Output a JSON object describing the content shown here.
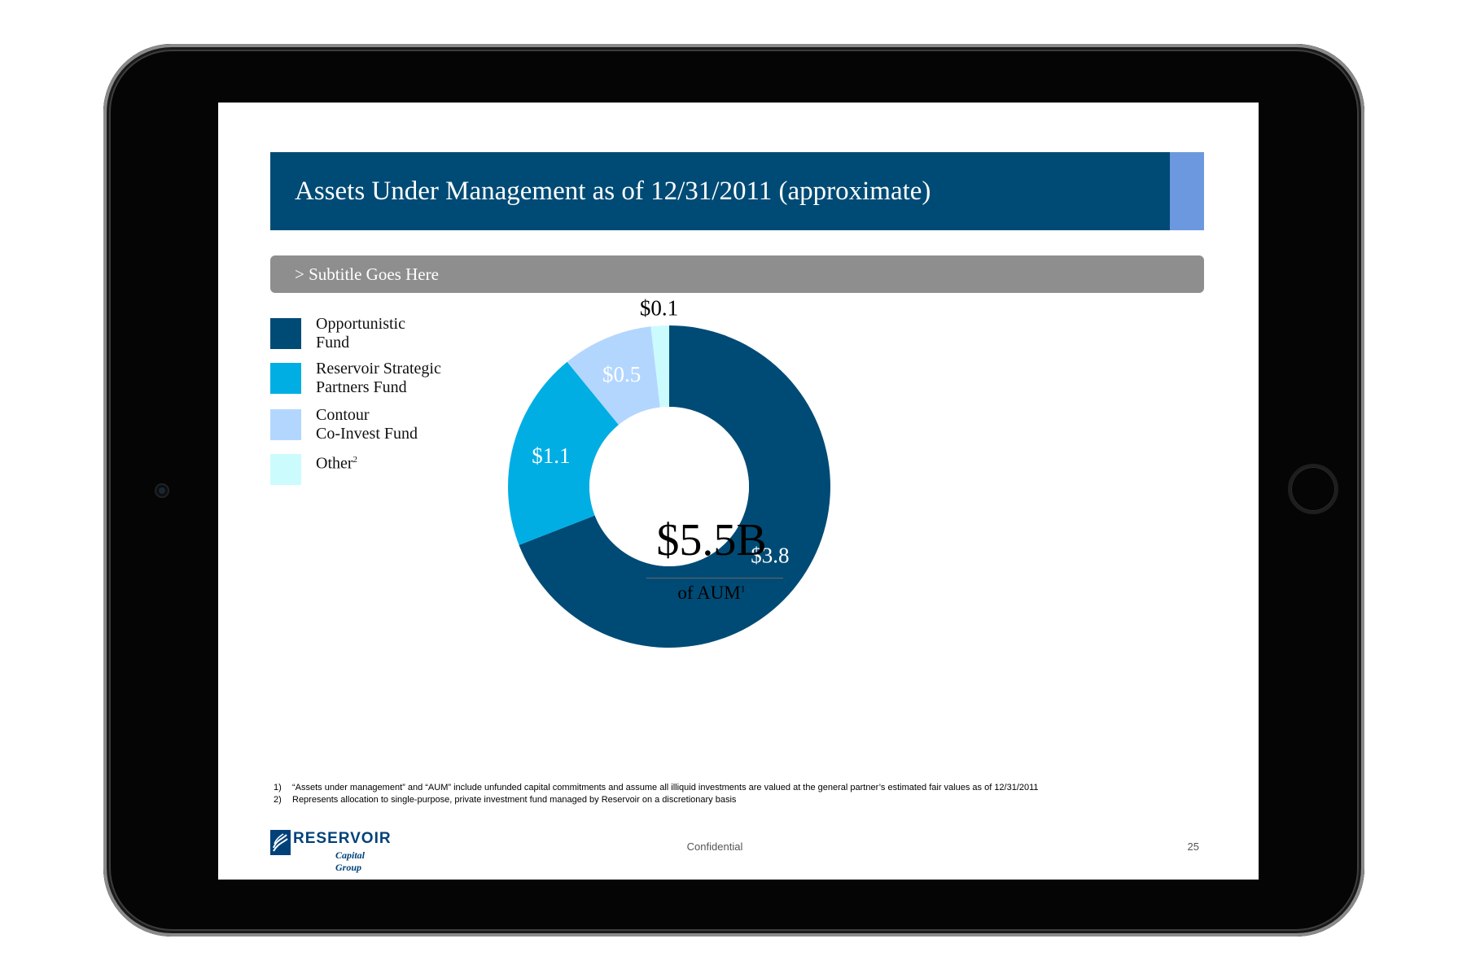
{
  "slide": {
    "title": "Assets Under Management as of 12/31/2011 (approximate)",
    "subtitle": "> Subtitle Goes Here",
    "confidential": "Confidential",
    "page_number": "25",
    "logo": {
      "name": "Reservoir",
      "sub": "Capital Group"
    },
    "colors": {
      "title_bar": "#004b75",
      "title_accent": "#6c98e0",
      "subtitle_bar": "#8e8e8e"
    }
  },
  "legend": [
    {
      "label": "Opportunistic\nFund",
      "color": "#004b75"
    },
    {
      "label": "Reservoir Strategic\nPartners Fund",
      "color": "#00aee3"
    },
    {
      "label": "Contour\nCo-Invest Fund",
      "color": "#b3d6ff"
    },
    {
      "label": "Other",
      "sup": "2",
      "color": "#ccfbfd"
    }
  ],
  "center": {
    "value": "$5.5B",
    "caption": "of AUM",
    "sup": "1"
  },
  "footnotes": [
    {
      "num": "1)",
      "text": "“Assets under management” and “AUM” include unfunded capital commitments and assume all illiquid investments are valued at the general partner’s estimated fair values as of 12/31/2011"
    },
    {
      "num": "2)",
      "text": "Represents allocation to single-purpose, private investment fund managed by Reservoir on a discretionary basis"
    }
  ],
  "chart_data": {
    "type": "pie",
    "donut": true,
    "title": "Assets Under Management as of 12/31/2011 (approximate)",
    "slices": [
      {
        "name": "Opportunistic Fund",
        "value": 3.8,
        "label": "$3.8",
        "color": "#004b75",
        "label_color": "#ffffff"
      },
      {
        "name": "Reservoir Strategic Partners Fund",
        "value": 1.1,
        "label": "$1.1",
        "color": "#00aee3",
        "label_color": "#ffffff"
      },
      {
        "name": "Contour Co-Invest Fund",
        "value": 0.5,
        "label": "$0.5",
        "color": "#b3d6ff",
        "label_color": "#ffffff"
      },
      {
        "name": "Other",
        "value": 0.1,
        "label": "$0.1",
        "color": "#ccfbfd",
        "label_color": "#000000"
      }
    ],
    "total_label": "$5.5B"
  }
}
